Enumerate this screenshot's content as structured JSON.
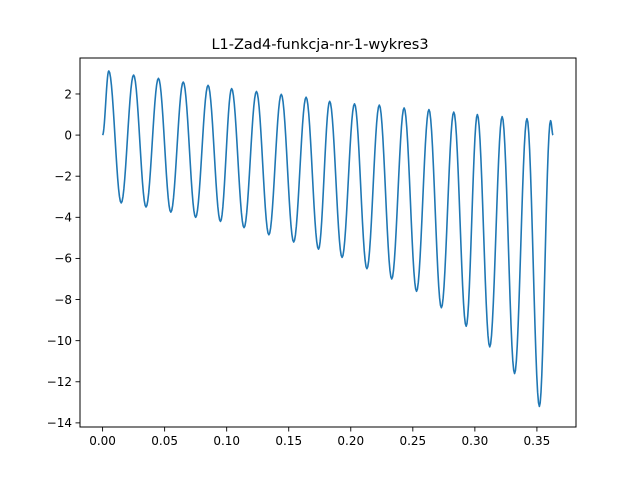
{
  "chart_data": {
    "type": "line",
    "title": "L1-Zad4-funkcja-nr-1-wykres3",
    "xlabel": "",
    "ylabel": "",
    "xlim": [
      -0.0182,
      0.3815
    ],
    "ylim": [
      -14.2,
      3.75
    ],
    "x_ticks": [
      0.0,
      0.05,
      0.1,
      0.15,
      0.2,
      0.25,
      0.3,
      0.35
    ],
    "x_tick_labels": [
      "0.00",
      "0.05",
      "0.10",
      "0.15",
      "0.20",
      "0.25",
      "0.30",
      "0.35"
    ],
    "y_ticks": [
      2,
      0,
      -2,
      -4,
      -6,
      -8,
      -10,
      -12,
      -14
    ],
    "y_tick_labels": [
      "2",
      "0",
      "−2",
      "−4",
      "−6",
      "−8",
      "−10",
      "−12",
      "−14"
    ],
    "grid": false,
    "line_color": "#1f77b4",
    "series": [
      {
        "x_range": [
          0.0,
          0.363
        ],
        "peaks": [
          [
            0.005,
            3.12
          ],
          [
            0.025,
            2.92
          ],
          [
            0.045,
            2.76
          ],
          [
            0.065,
            2.58
          ],
          [
            0.085,
            2.42
          ],
          [
            0.104,
            2.26
          ],
          [
            0.124,
            2.12
          ],
          [
            0.144,
            1.98
          ],
          [
            0.164,
            1.84
          ],
          [
            0.183,
            1.64
          ],
          [
            0.203,
            1.52
          ],
          [
            0.223,
            1.46
          ],
          [
            0.243,
            1.32
          ],
          [
            0.263,
            1.24
          ],
          [
            0.283,
            1.12
          ],
          [
            0.302,
            1.0
          ],
          [
            0.322,
            0.9
          ],
          [
            0.342,
            0.8
          ],
          [
            0.361,
            0.7
          ]
        ],
        "troughs": [
          [
            0.015,
            -3.3
          ],
          [
            0.035,
            -3.5
          ],
          [
            0.055,
            -3.75
          ],
          [
            0.075,
            -4.0
          ],
          [
            0.095,
            -4.2
          ],
          [
            0.114,
            -4.5
          ],
          [
            0.134,
            -4.85
          ],
          [
            0.154,
            -5.2
          ],
          [
            0.174,
            -5.55
          ],
          [
            0.193,
            -5.95
          ],
          [
            0.213,
            -6.5
          ],
          [
            0.233,
            -7.0
          ],
          [
            0.253,
            -7.6
          ],
          [
            0.273,
            -8.4
          ],
          [
            0.293,
            -9.3
          ],
          [
            0.312,
            -10.3
          ],
          [
            0.332,
            -11.6
          ],
          [
            0.352,
            -13.2
          ]
        ],
        "end": [
          0.363,
          0.0
        ]
      }
    ]
  }
}
